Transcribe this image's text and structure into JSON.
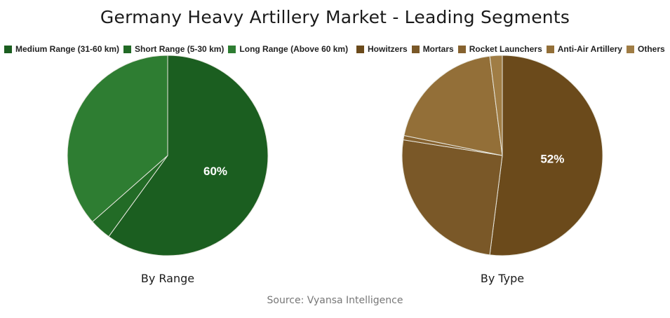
{
  "title": "Germany Heavy Artillery Market - Leading Segments",
  "source": "Source: Vyansa Intelligence",
  "chart_data": [
    {
      "type": "pie",
      "subtitle": "By Range",
      "categories": [
        "Medium Range (31-60 km)",
        "Short Range (5-30 km)",
        "Long Range (Above 60 km)"
      ],
      "values": [
        60,
        3.5,
        36.5
      ],
      "data_labels": [
        "60%",
        "",
        ""
      ],
      "colors": [
        "#1b5e20",
        "#226b26",
        "#2e7d32"
      ],
      "legend": "top-left"
    },
    {
      "type": "pie",
      "subtitle": "By Type",
      "categories": [
        "Howitzers",
        "Mortars",
        "Rocket Launchers",
        "Anti-Air Artillery",
        "Others"
      ],
      "values": [
        52,
        25.5,
        0.7,
        19.8,
        2
      ],
      "data_labels": [
        "52%",
        "",
        "",
        "",
        ""
      ],
      "colors": [
        "#6b4a1b",
        "#7a5828",
        "#86622f",
        "#936f38",
        "#a07d45"
      ],
      "legend": "top-right"
    }
  ]
}
